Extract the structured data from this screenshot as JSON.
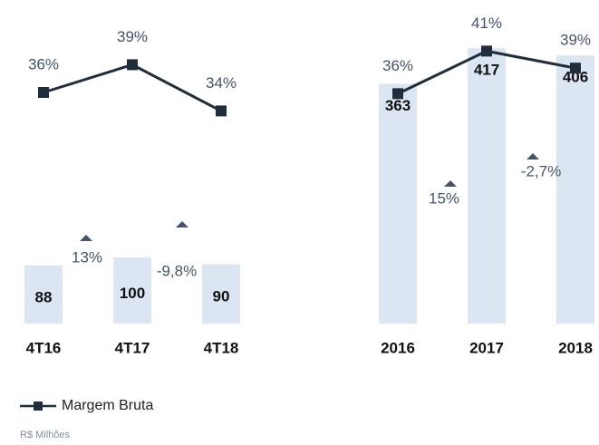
{
  "chart_data": [
    {
      "type": "bar",
      "categories": [
        "4T16",
        "4T17",
        "4T18"
      ],
      "series": [
        {
          "name": "R$ Milhões",
          "color": "#dce6f2",
          "values": [
            88,
            100,
            90
          ]
        },
        {
          "name": "Margem Bruta",
          "color": "#1f2d3d",
          "axis": "y2",
          "values": [
            36,
            39,
            34
          ],
          "value_labels": [
            "36%",
            "39%",
            "34%"
          ]
        }
      ],
      "ylim": [
        0,
        490
      ],
      "y2lim": [
        11,
        46
      ],
      "annotations": [
        {
          "text": "13%"
        },
        {
          "text": "-9,8%"
        }
      ]
    },
    {
      "type": "bar",
      "categories": [
        "2016",
        "2017",
        "2018"
      ],
      "series": [
        {
          "name": "R$ Milhões",
          "color": "#dce6f2",
          "values": [
            363,
            417,
            406
          ]
        },
        {
          "name": "Margem Bruta",
          "color": "#1f2d3d",
          "axis": "y2",
          "values": [
            36,
            41,
            39
          ],
          "value_labels": [
            "36%",
            "41%",
            "39%"
          ]
        }
      ],
      "ylim": [
        0,
        490
      ],
      "y2lim": [
        9,
        47
      ],
      "annotations": [
        {
          "text": "15%"
        },
        {
          "text": "-2,7%"
        }
      ]
    }
  ]
}
